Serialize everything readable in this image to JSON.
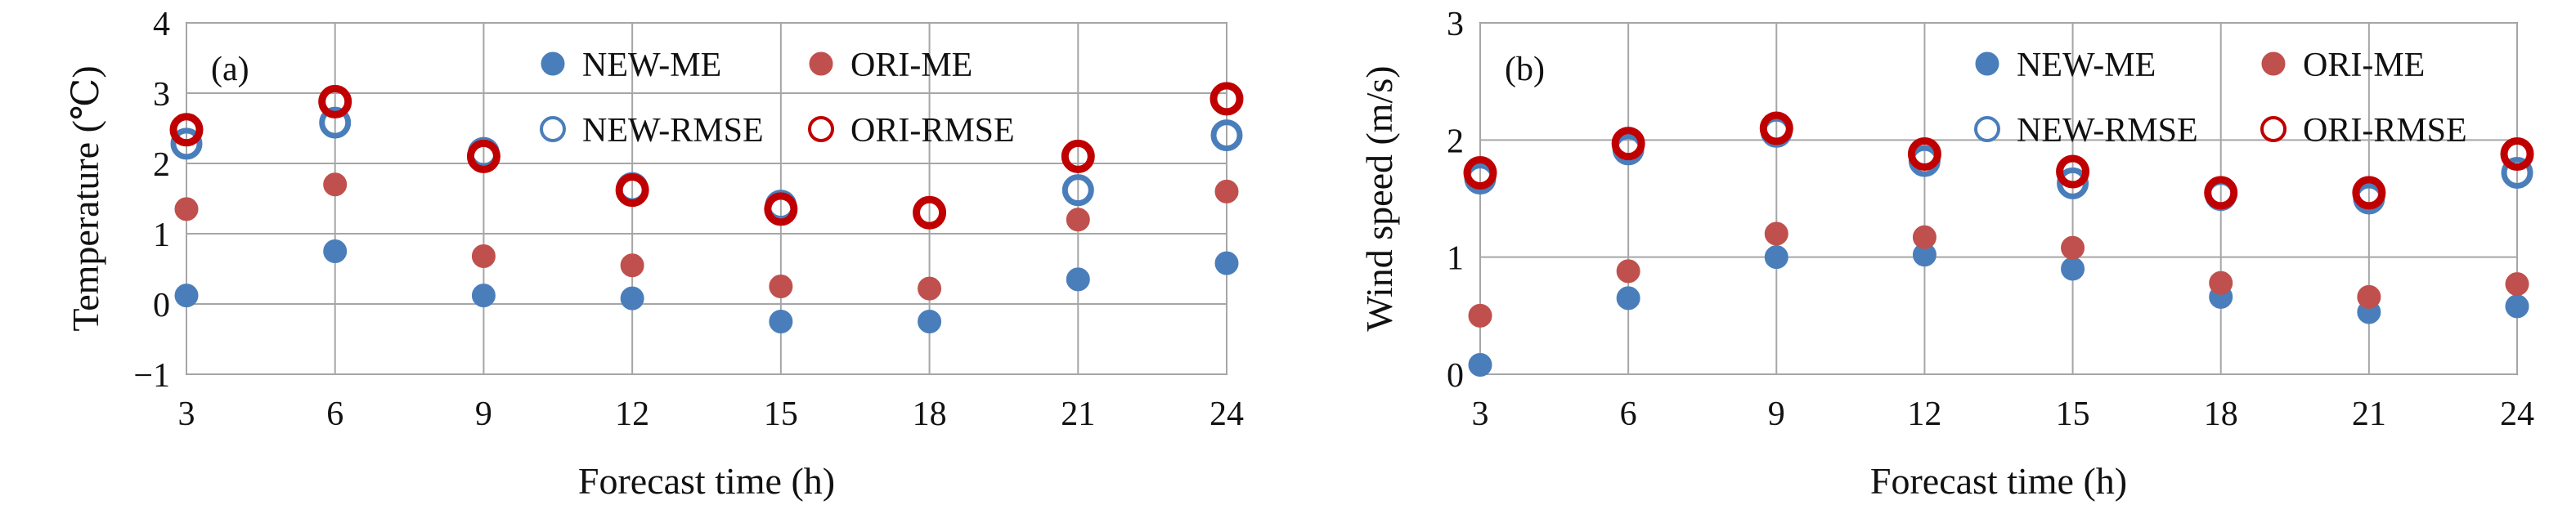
{
  "chart_data": [
    {
      "type": "scatter",
      "panel_label": "(a)",
      "xlabel": "Forecast time (h)",
      "ylabel": "Temperature (℃)",
      "x": [
        3,
        6,
        9,
        12,
        15,
        18,
        21,
        24
      ],
      "xlim": [
        3,
        24
      ],
      "ylim": [
        -1,
        4
      ],
      "xticks": [
        "3",
        "6",
        "9",
        "12",
        "15",
        "18",
        "21",
        "24"
      ],
      "yticks": [
        "−1",
        "0",
        "1",
        "2",
        "3",
        "4"
      ],
      "grid": true,
      "legend_position": "top-center",
      "series": [
        {
          "name": "NEW-ME",
          "marker": "filled",
          "color": "#4a7ebb",
          "values": [
            0.12,
            0.75,
            0.12,
            0.08,
            -0.25,
            -0.25,
            0.35,
            0.58
          ]
        },
        {
          "name": "ORI-ME",
          "marker": "filled",
          "color": "#c0504d",
          "values": [
            1.35,
            1.7,
            0.68,
            0.55,
            0.25,
            0.22,
            1.2,
            1.6
          ]
        },
        {
          "name": "NEW-RMSE",
          "marker": "open",
          "color": "#4a7ebb",
          "values": [
            2.28,
            2.58,
            2.15,
            1.65,
            1.4,
            1.3,
            1.62,
            2.4
          ]
        },
        {
          "name": "ORI-RMSE",
          "marker": "open",
          "color": "#c00000",
          "values": [
            2.48,
            2.88,
            2.1,
            1.62,
            1.35,
            1.3,
            2.1,
            2.92
          ]
        }
      ]
    },
    {
      "type": "scatter",
      "panel_label": "(b)",
      "xlabel": "Forecast time (h)",
      "ylabel": "Wind speed (m/s)",
      "x": [
        3,
        6,
        9,
        12,
        15,
        18,
        21,
        24
      ],
      "xlim": [
        3,
        24
      ],
      "ylim": [
        0,
        3
      ],
      "xticks": [
        "3",
        "6",
        "9",
        "12",
        "15",
        "18",
        "21",
        "24"
      ],
      "yticks": [
        "0",
        "1",
        "2",
        "3"
      ],
      "grid": true,
      "legend_position": "top-center",
      "series": [
        {
          "name": "NEW-ME",
          "marker": "filled",
          "color": "#4a7ebb",
          "values": [
            0.08,
            0.65,
            1.0,
            1.02,
            0.9,
            0.66,
            0.53,
            0.58
          ]
        },
        {
          "name": "ORI-ME",
          "marker": "filled",
          "color": "#c0504d",
          "values": [
            0.5,
            0.88,
            1.2,
            1.17,
            1.08,
            0.78,
            0.66,
            0.77
          ]
        },
        {
          "name": "NEW-RMSE",
          "marker": "open",
          "color": "#4a7ebb",
          "values": [
            1.67,
            1.92,
            2.07,
            1.82,
            1.63,
            1.53,
            1.5,
            1.72
          ]
        },
        {
          "name": "ORI-RMSE",
          "marker": "open",
          "color": "#c00000",
          "values": [
            1.72,
            1.97,
            2.1,
            1.88,
            1.73,
            1.55,
            1.55,
            1.88
          ]
        }
      ]
    }
  ]
}
